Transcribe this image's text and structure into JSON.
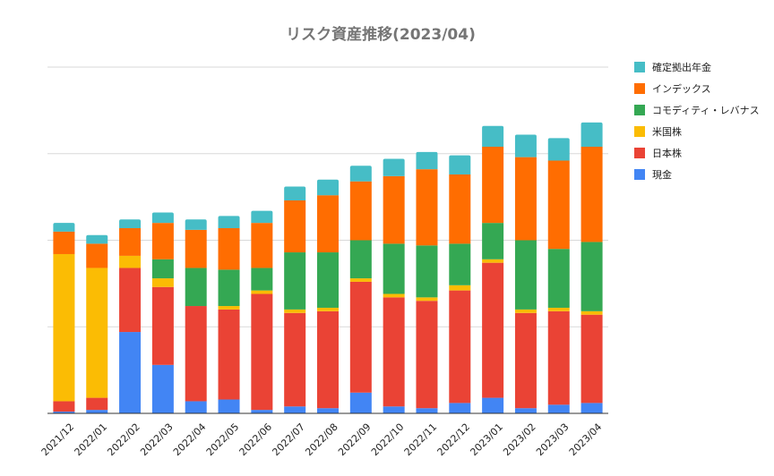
{
  "chart_data": {
    "type": "bar",
    "stacked": true,
    "title": "リスク資産推移(2023/04)",
    "xlabel": "",
    "ylabel": "",
    "ylim": [
      0,
      200
    ],
    "y_gridlines": [
      0,
      50,
      100,
      150,
      200
    ],
    "y_tick_labels_shown": false,
    "grid": true,
    "legend_position": "right",
    "categories": [
      "2021/12",
      "2022/01",
      "2022/02",
      "2022/03",
      "2022/04",
      "2022/05",
      "2022/06",
      "2022/07",
      "2022/08",
      "2022/09",
      "2022/10",
      "2022/11",
      "2022/12",
      "2023/01",
      "2023/02",
      "2023/03",
      "2023/04"
    ],
    "series": [
      {
        "name": "現金",
        "color": "#4285F4",
        "values": [
          1,
          2,
          47,
          28,
          7,
          8,
          2,
          4,
          3,
          12,
          4,
          3,
          6,
          9,
          3,
          5,
          6
        ]
      },
      {
        "name": "日本株",
        "color": "#EA4335",
        "values": [
          6,
          7,
          37,
          45,
          55,
          52,
          67,
          54,
          56,
          64,
          63,
          62,
          65,
          78,
          55,
          54,
          51
        ]
      },
      {
        "name": "米国株",
        "color": "#FBBC04",
        "values": [
          85,
          75,
          7,
          5,
          0,
          2,
          2,
          2,
          2,
          2,
          2,
          2,
          3,
          2,
          2,
          2,
          2
        ]
      },
      {
        "name": "コモディティ・レバナス",
        "color": "#34A853",
        "values": [
          0,
          0,
          0,
          11,
          22,
          21,
          13,
          33,
          32,
          22,
          29,
          30,
          24,
          21,
          40,
          34,
          40
        ]
      },
      {
        "name": "インデックス",
        "color": "#FF6D01",
        "values": [
          13,
          14,
          16,
          21,
          22,
          24,
          26,
          30,
          33,
          34,
          39,
          44,
          40,
          44,
          48,
          51,
          55
        ]
      },
      {
        "name": "確定拠出年金",
        "color": "#46BDC6",
        "values": [
          5,
          5,
          5,
          6,
          6,
          7,
          7,
          8,
          9,
          9,
          10,
          10,
          11,
          12,
          13,
          13,
          14
        ]
      }
    ],
    "legend_order": [
      "確定拠出年金",
      "インデックス",
      "コモディティ・レバナス",
      "米国株",
      "日本株",
      "現金"
    ]
  }
}
